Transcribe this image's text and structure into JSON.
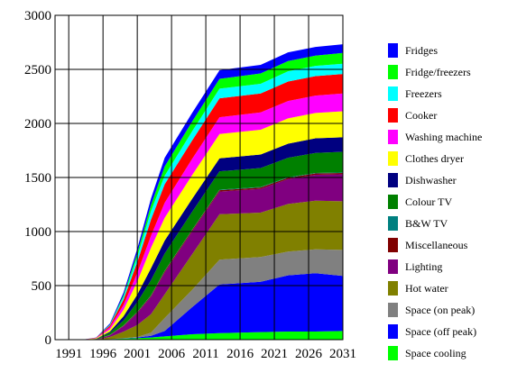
{
  "chart_data": {
    "type": "area",
    "stacked": true,
    "title": "",
    "xlabel": "",
    "ylabel": "",
    "xlim": [
      1989,
      2031
    ],
    "ylim": [
      0,
      3000
    ],
    "xticks": [
      1991,
      1996,
      2001,
      2006,
      2011,
      2016,
      2021,
      2026,
      2031
    ],
    "yticks": [
      0,
      500,
      1000,
      1500,
      2000,
      2500,
      3000
    ],
    "grid": true,
    "legend_position": "right",
    "x": [
      1989,
      1993,
      1995,
      1997,
      1999,
      2001,
      2003,
      2005,
      2009,
      2013,
      2019,
      2023,
      2027,
      2031
    ],
    "series": [
      {
        "name": "Space cooling",
        "color": "#00ff00",
        "values": [
          0,
          0,
          0,
          5,
          10,
          15,
          20,
          30,
          50,
          60,
          70,
          75,
          75,
          80
        ]
      },
      {
        "name": "Space (off peak)",
        "color": "#0000ff",
        "values": [
          0,
          0,
          0,
          0,
          2,
          5,
          15,
          50,
          250,
          450,
          465,
          520,
          540,
          510
        ]
      },
      {
        "name": "Space (on peak)",
        "color": "#808080",
        "values": [
          0,
          0,
          0,
          0,
          2,
          5,
          30,
          120,
          160,
          230,
          230,
          220,
          220,
          240
        ]
      },
      {
        "name": "Hot water",
        "color": "#808000",
        "values": [
          0,
          0,
          0,
          20,
          60,
          110,
          170,
          220,
          330,
          420,
          410,
          440,
          450,
          450
        ]
      },
      {
        "name": "Lighting",
        "color": "#800080",
        "values": [
          0,
          0,
          2,
          15,
          50,
          110,
          160,
          200,
          210,
          210,
          220,
          230,
          240,
          250
        ]
      },
      {
        "name": "Miscellaneous",
        "color": "#800000",
        "values": [
          0,
          0,
          0,
          2,
          5,
          8,
          10,
          12,
          12,
          12,
          12,
          12,
          12,
          12
        ]
      },
      {
        "name": "B&W TV",
        "color": "#008080",
        "values": [
          0,
          0,
          0,
          2,
          3,
          4,
          5,
          5,
          5,
          5,
          5,
          5,
          5,
          5
        ]
      },
      {
        "name": "Colour TV",
        "color": "#008000",
        "values": [
          0,
          0,
          3,
          20,
          45,
          90,
          140,
          160,
          165,
          170,
          175,
          180,
          185,
          190
        ]
      },
      {
        "name": "Dishwasher",
        "color": "#000080",
        "values": [
          0,
          0,
          2,
          10,
          40,
          70,
          110,
          120,
          120,
          120,
          125,
          130,
          135,
          135
        ]
      },
      {
        "name": "Clothes dryer",
        "color": "#ffff00",
        "values": [
          0,
          0,
          5,
          20,
          60,
          120,
          190,
          210,
          220,
          225,
          230,
          235,
          235,
          240
        ]
      },
      {
        "name": "Washing machine",
        "color": "#ff00ff",
        "values": [
          0,
          0,
          3,
          20,
          45,
          80,
          110,
          140,
          150,
          155,
          160,
          160,
          160,
          165
        ]
      },
      {
        "name": "Cooker",
        "color": "#ff0000",
        "values": [
          0,
          0,
          3,
          15,
          50,
          100,
          150,
          170,
          170,
          175,
          175,
          180,
          180,
          180
        ]
      },
      {
        "name": "Freezers",
        "color": "#00ffff",
        "values": [
          0,
          0,
          0,
          5,
          25,
          50,
          80,
          80,
          85,
          90,
          90,
          95,
          95,
          95
        ]
      },
      {
        "name": "Fridge/freezers",
        "color": "#00ff00",
        "values": [
          0,
          0,
          0,
          5,
          15,
          35,
          55,
          85,
          90,
          90,
          95,
          95,
          95,
          100
        ]
      },
      {
        "name": "Fridges",
        "color": "#0000ff",
        "values": [
          0,
          0,
          2,
          10,
          25,
          40,
          60,
          80,
          80,
          80,
          80,
          80,
          80,
          80
        ]
      }
    ]
  },
  "legend": [
    {
      "label": "Fridges",
      "color": "#0000ff"
    },
    {
      "label": "Fridge/freezers",
      "color": "#00ff00"
    },
    {
      "label": "Freezers",
      "color": "#00ffff"
    },
    {
      "label": "Cooker",
      "color": "#ff0000"
    },
    {
      "label": "Washing machine",
      "color": "#ff00ff"
    },
    {
      "label": "Clothes dryer",
      "color": "#ffff00"
    },
    {
      "label": "Dishwasher",
      "color": "#000080"
    },
    {
      "label": "Colour TV",
      "color": "#008000"
    },
    {
      "label": "B&W TV",
      "color": "#008080"
    },
    {
      "label": "Miscellaneous",
      "color": "#800000"
    },
    {
      "label": "Lighting",
      "color": "#800080"
    },
    {
      "label": "Hot water",
      "color": "#808000"
    },
    {
      "label": "Space (on peak)",
      "color": "#808080"
    },
    {
      "label": "Space (off peak)",
      "color": "#0000ff"
    },
    {
      "label": "Space cooling",
      "color": "#00ff00"
    }
  ]
}
